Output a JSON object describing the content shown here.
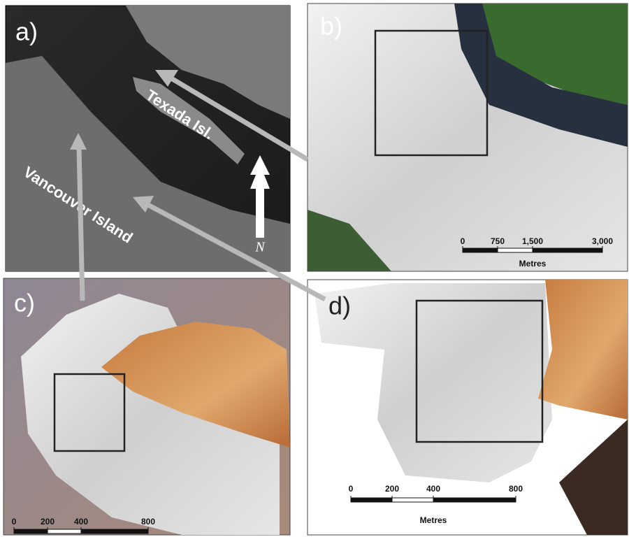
{
  "panels": [
    {
      "label": "a)",
      "annotations": [
        "Texada Isl.",
        "Vancouver Island"
      ],
      "north": "N"
    },
    {
      "label": "b)",
      "scale_bar": {
        "ticks": [
          0,
          750,
          {
            "value": 1500,
            "label": "1,500"
          },
          {
            "value": 3000,
            "label": "3,000"
          }
        ],
        "unit": "Metres"
      }
    },
    {
      "label": "c)",
      "scale_bar": {
        "ticks": [
          0,
          200,
          400,
          800
        ]
      }
    },
    {
      "label": "d)",
      "scale_bar": {
        "ticks": [
          0,
          200,
          400,
          800
        ],
        "unit": "Metres"
      }
    }
  ]
}
